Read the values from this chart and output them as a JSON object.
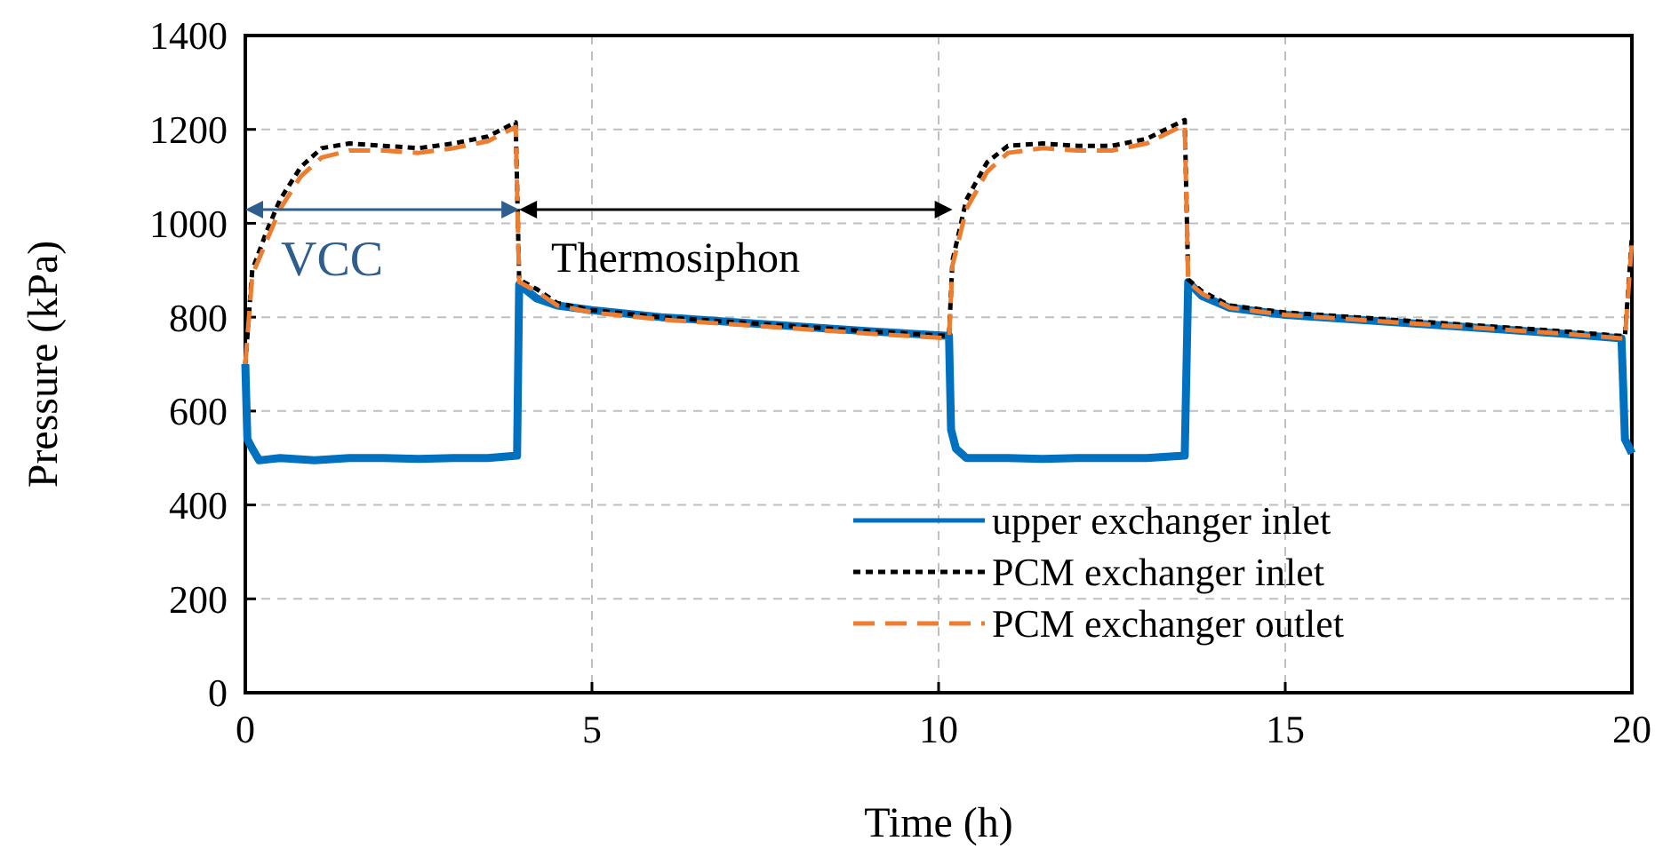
{
  "chart_data": {
    "type": "line",
    "xlabel": "Time (h)",
    "ylabel": "Pressure (kPa)",
    "xlim": [
      0,
      20
    ],
    "ylim": [
      0,
      1400
    ],
    "xticks": [
      0,
      5,
      10,
      15,
      20
    ],
    "yticks": [
      0,
      200,
      400,
      600,
      800,
      1000,
      1200,
      1400
    ],
    "grid": true,
    "legend": "bottom right",
    "annotations": [
      "VCC",
      "Thermosiphon"
    ],
    "series": [
      {
        "name": "upper exchanger inlet",
        "color": "#0070c0",
        "line_style": "solid",
        "x": [
          0,
          0.03,
          0.1,
          0.2,
          0.5,
          1,
          1.5,
          2,
          2.5,
          3,
          3.5,
          3.92,
          3.95,
          4.2,
          4.5,
          5,
          6,
          7,
          8,
          9,
          10.15,
          10.18,
          10.25,
          10.4,
          11,
          11.5,
          12,
          12.5,
          13,
          13.55,
          13.6,
          13.8,
          14.2,
          15,
          16,
          17,
          18,
          19,
          19.85,
          19.9,
          20
        ],
        "values": [
          700,
          540,
          520,
          495,
          500,
          495,
          500,
          500,
          498,
          500,
          500,
          505,
          870,
          840,
          825,
          815,
          800,
          790,
          780,
          770,
          760,
          560,
          520,
          500,
          500,
          498,
          500,
          500,
          500,
          505,
          875,
          845,
          820,
          805,
          795,
          785,
          775,
          765,
          755,
          540,
          510
        ]
      },
      {
        "name": "PCM exchanger inlet",
        "color": "#000000",
        "line_style": "dotted",
        "x": [
          0,
          0.1,
          0.3,
          0.5,
          0.8,
          1.1,
          1.5,
          2,
          2.5,
          3,
          3.5,
          3.9,
          3.95,
          4.2,
          4.5,
          5,
          6,
          7,
          8,
          9,
          10.15,
          10.2,
          10.4,
          10.7,
          11,
          11.5,
          12,
          12.5,
          13,
          13.55,
          13.6,
          13.8,
          14.2,
          15,
          16,
          17,
          18,
          19,
          19.85,
          19.9,
          20
        ],
        "values": [
          700,
          900,
          980,
          1050,
          1120,
          1160,
          1170,
          1165,
          1160,
          1170,
          1185,
          1215,
          880,
          860,
          830,
          815,
          800,
          790,
          780,
          770,
          760,
          920,
          1050,
          1130,
          1165,
          1170,
          1165,
          1165,
          1180,
          1220,
          880,
          855,
          825,
          810,
          800,
          790,
          780,
          770,
          760,
          760,
          970
        ]
      },
      {
        "name": "PCM exchanger outlet",
        "color": "#ed7d31",
        "line_style": "dashed",
        "x": [
          0,
          0.1,
          0.3,
          0.5,
          0.8,
          1.1,
          1.5,
          2,
          2.5,
          3,
          3.5,
          3.9,
          3.95,
          4.2,
          4.5,
          5,
          6,
          7,
          8,
          9,
          10.15,
          10.2,
          10.4,
          10.7,
          11,
          11.5,
          12,
          12.5,
          13,
          13.55,
          13.6,
          13.8,
          14.2,
          15,
          16,
          17,
          18,
          19,
          19.85,
          19.9,
          20
        ],
        "values": [
          700,
          890,
          960,
          1030,
          1100,
          1140,
          1155,
          1155,
          1150,
          1160,
          1175,
          1205,
          875,
          855,
          825,
          810,
          795,
          785,
          775,
          765,
          755,
          910,
          1030,
          1110,
          1150,
          1160,
          1155,
          1155,
          1170,
          1210,
          875,
          850,
          820,
          805,
          795,
          785,
          775,
          765,
          755,
          755,
          960
        ]
      }
    ]
  }
}
